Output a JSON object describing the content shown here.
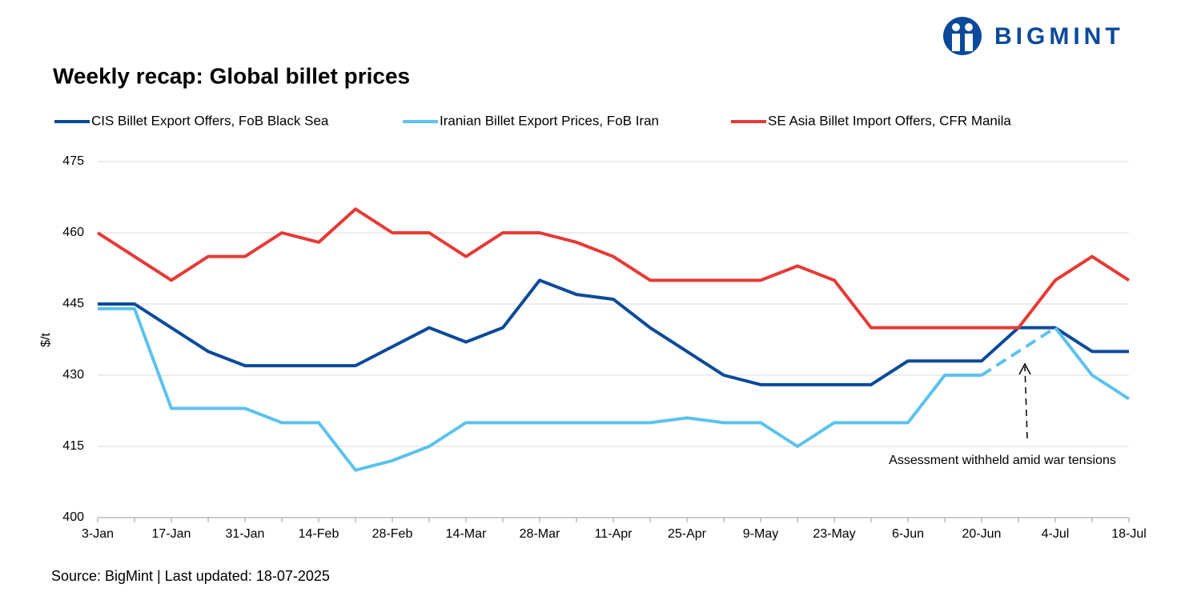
{
  "logo": "BIGMINT",
  "chart_data": {
    "type": "line",
    "title": "Weekly recap: Global billet prices",
    "y_label": "$/t",
    "source": "Source: BigMint | Last updated: 18-07-2025",
    "annotation": "Assessment withheld amid  war tensions",
    "categories": [
      "3-Jan",
      null,
      "17-Jan",
      null,
      "31-Jan",
      null,
      "14-Feb",
      null,
      "28-Feb",
      null,
      "14-Mar",
      null,
      "28-Mar",
      null,
      "11-Apr",
      null,
      "25-Apr",
      null,
      "9-May",
      null,
      "23-May",
      null,
      "6-Jun",
      null,
      "20-Jun",
      null,
      "4-Jul",
      null,
      "18-Jul"
    ],
    "ylim": [
      400,
      475
    ],
    "yticks": [
      400,
      415,
      430,
      445,
      460,
      475
    ],
    "grid": true,
    "series": [
      {
        "name": "CIS Billet Export Offers, FoB Black Sea",
        "color": "#0b4a9a",
        "values": [
          445,
          445,
          440,
          435,
          432,
          432,
          432,
          432,
          436,
          440,
          437,
          440,
          450,
          447,
          446,
          440,
          435,
          430,
          428,
          428,
          428,
          428,
          433,
          433,
          433,
          440,
          440,
          435,
          435
        ]
      },
      {
        "name": "Iranian Billet Export Prices, FoB Iran",
        "color": "#5bc2ee",
        "values": [
          444,
          444,
          423,
          423,
          423,
          420,
          420,
          410,
          412,
          415,
          420,
          420,
          420,
          420,
          420,
          420,
          421,
          420,
          420,
          415,
          420,
          420,
          420,
          430,
          430,
          null,
          440,
          430,
          425
        ]
      },
      {
        "name": "SE Asia Billet Import Offers, CFR Manila",
        "color": "#e63a35",
        "values": [
          460,
          455,
          450,
          455,
          455,
          460,
          458,
          465,
          460,
          460,
          455,
          460,
          460,
          458,
          455,
          450,
          450,
          450,
          450,
          453,
          450,
          440,
          440,
          440,
          440,
          440,
          450,
          455,
          450
        ]
      }
    ]
  }
}
